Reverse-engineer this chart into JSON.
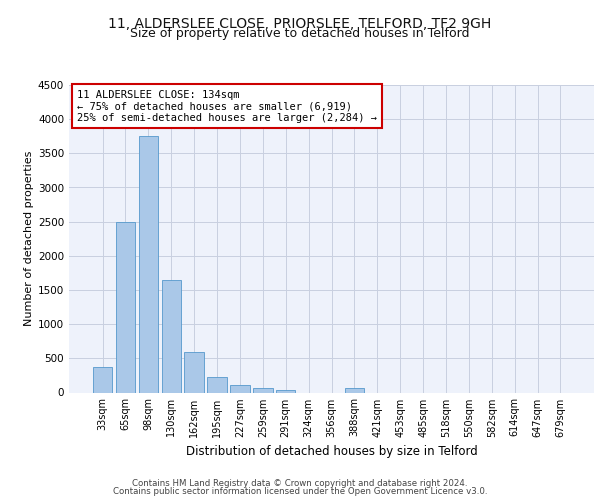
{
  "title1": "11, ALDERSLEE CLOSE, PRIORSLEE, TELFORD, TF2 9GH",
  "title2": "Size of property relative to detached houses in Telford",
  "xlabel": "Distribution of detached houses by size in Telford",
  "ylabel": "Number of detached properties",
  "categories": [
    "33sqm",
    "65sqm",
    "98sqm",
    "130sqm",
    "162sqm",
    "195sqm",
    "227sqm",
    "259sqm",
    "291sqm",
    "324sqm",
    "356sqm",
    "388sqm",
    "421sqm",
    "453sqm",
    "485sqm",
    "518sqm",
    "550sqm",
    "582sqm",
    "614sqm",
    "647sqm",
    "679sqm"
  ],
  "values": [
    370,
    2500,
    3750,
    1640,
    590,
    220,
    105,
    60,
    40,
    0,
    0,
    60,
    0,
    0,
    0,
    0,
    0,
    0,
    0,
    0,
    0
  ],
  "bar_color": "#aac8e8",
  "bar_edge_color": "#5599cc",
  "annotation_text": "11 ALDERSLEE CLOSE: 134sqm\n← 75% of detached houses are smaller (6,919)\n25% of semi-detached houses are larger (2,284) →",
  "annotation_box_color": "#ffffff",
  "annotation_box_edge_color": "#cc0000",
  "ylim": [
    0,
    4500
  ],
  "yticks": [
    0,
    500,
    1000,
    1500,
    2000,
    2500,
    3000,
    3500,
    4000,
    4500
  ],
  "footer1": "Contains HM Land Registry data © Crown copyright and database right 2024.",
  "footer2": "Contains public sector information licensed under the Open Government Licence v3.0.",
  "bg_color": "#eef2fb",
  "grid_color": "#c8cfe0",
  "title_fontsize": 10,
  "subtitle_fontsize": 9
}
